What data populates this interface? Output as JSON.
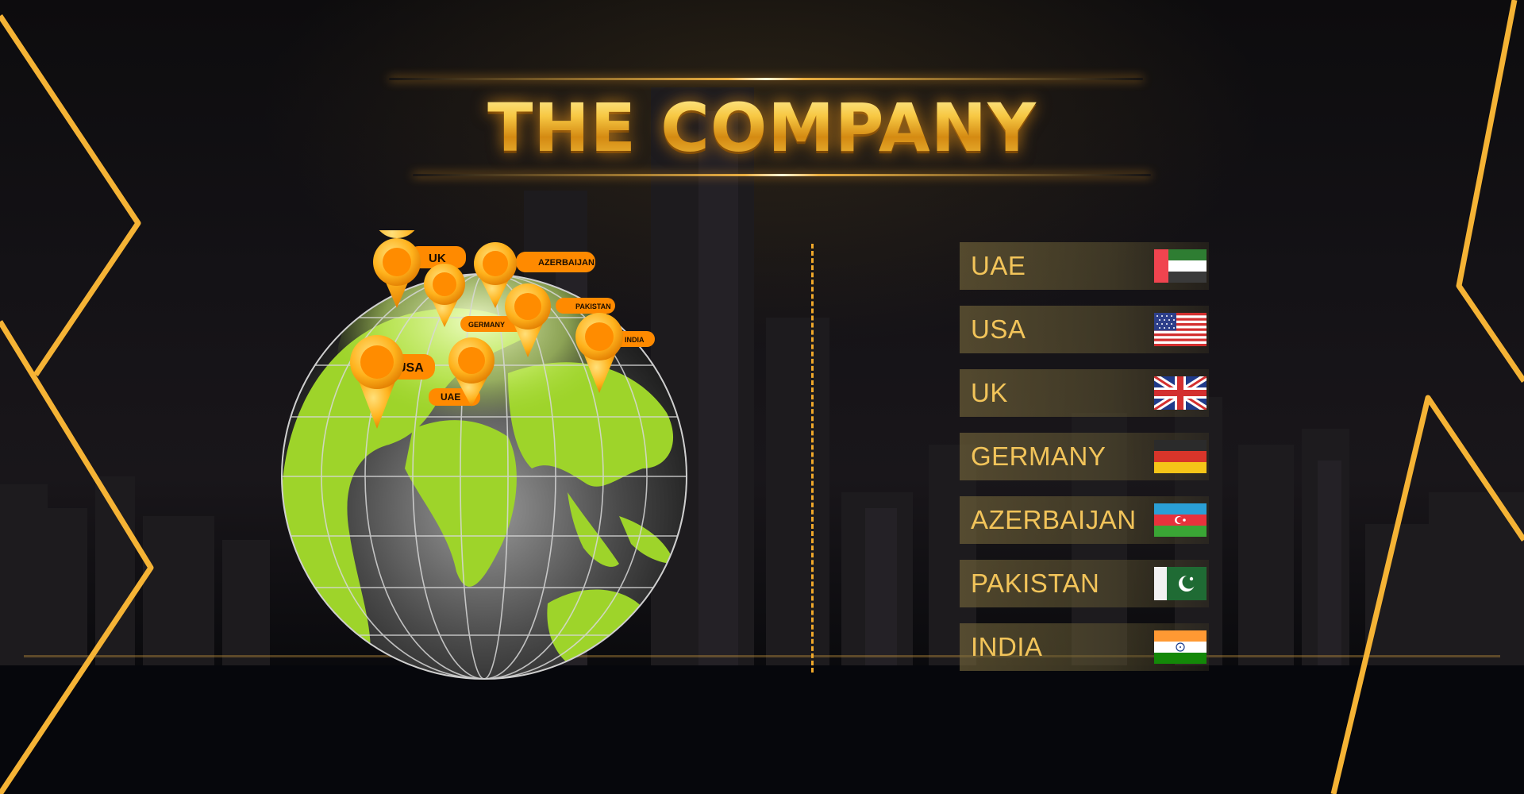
{
  "title": "THE COMPANY",
  "countries": [
    {
      "name": "UAE",
      "flag": "flag-uae"
    },
    {
      "name": "USA",
      "flag": "flag-usa"
    },
    {
      "name": "UK",
      "flag": "flag-uk"
    },
    {
      "name": "GERMANY",
      "flag": "flag-germany"
    },
    {
      "name": "AZERBAIJAN",
      "flag": "flag-azerbaijan"
    },
    {
      "name": "PAKISTAN",
      "flag": "flag-pakistan"
    },
    {
      "name": "INDIA",
      "flag": "flag-india"
    }
  ],
  "markers": [
    "UK",
    "AZERBAIJAN",
    "GERMANY",
    "PAKISTAN",
    "INDIA",
    "USA",
    "UAE"
  ],
  "colors": {
    "gold": "#f5b335",
    "land": "#9ed42a",
    "pin": "#ff8c00",
    "label": "#ff8a00"
  }
}
